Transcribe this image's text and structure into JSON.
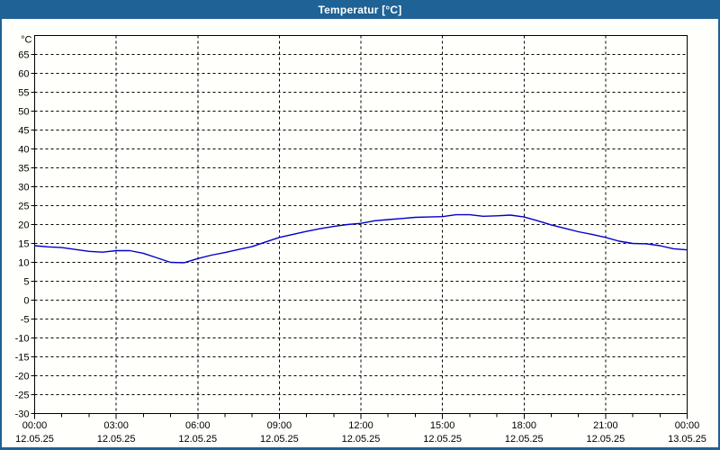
{
  "window": {
    "title": "Temperatur [°C]"
  },
  "colors": {
    "titlebar_bg": "#1e6296",
    "titlebar_text": "#ffffff",
    "frame": "#1e6296",
    "background": "#fffffb",
    "plot_border": "#000000",
    "gridline": "#000000",
    "tick": "#000000",
    "label_text": "#000000",
    "line": "#0000cc"
  },
  "chart_data": {
    "type": "line",
    "title": "Temperatur [°C]",
    "y_unit_label": "°C",
    "ylim": [
      -30,
      70
    ],
    "ytick_step": 5,
    "ytick_labels": [
      "65",
      "60",
      "55",
      "50",
      "45",
      "40",
      "35",
      "30",
      "25",
      "20",
      "15",
      "10",
      "5",
      "0",
      "-5",
      "-10",
      "-15",
      "-20",
      "-25",
      "-30"
    ],
    "xlim_hours": [
      0,
      24
    ],
    "xtick_step_hours": 3,
    "minor_xtick_step_hours": 1,
    "grid": "dashed",
    "legend": "none",
    "xticks": [
      {
        "time": "00:00",
        "date": "12.05.25"
      },
      {
        "time": "03:00",
        "date": "12.05.25"
      },
      {
        "time": "06:00",
        "date": "12.05.25"
      },
      {
        "time": "09:00",
        "date": "12.05.25"
      },
      {
        "time": "12:00",
        "date": "12.05.25"
      },
      {
        "time": "15:00",
        "date": "12.05.25"
      },
      {
        "time": "18:00",
        "date": "12.05.25"
      },
      {
        "time": "21:00",
        "date": "12.05.25"
      },
      {
        "time": "00:00",
        "date": "13.05.25"
      }
    ],
    "series": [
      {
        "name": "Temperatur",
        "color": "#0000cc",
        "x_hours": [
          0,
          0.5,
          1,
          1.5,
          2,
          2.5,
          3,
          3.5,
          4,
          4.5,
          5,
          5.5,
          6,
          6.5,
          7,
          7.5,
          8,
          8.5,
          9,
          9.5,
          10,
          10.5,
          11,
          11.5,
          12,
          12.5,
          13,
          13.5,
          14,
          14.5,
          15,
          15.5,
          16,
          16.5,
          17,
          17.5,
          18,
          18.5,
          19,
          19.5,
          20,
          20.5,
          21,
          21.5,
          22,
          22.5,
          23,
          23.5,
          24
        ],
        "values": [
          14.4,
          14.1,
          13.9,
          13.4,
          12.9,
          12.7,
          13.1,
          13.1,
          12.4,
          11.2,
          10.0,
          9.9,
          11.0,
          11.9,
          12.6,
          13.4,
          14.2,
          15.4,
          16.6,
          17.4,
          18.2,
          18.9,
          19.5,
          20.0,
          20.3,
          21.0,
          21.3,
          21.6,
          21.9,
          22.0,
          22.1,
          22.6,
          22.6,
          22.2,
          22.3,
          22.5,
          22.0,
          21.0,
          19.9,
          19.0,
          18.1,
          17.4,
          16.6,
          15.6,
          15.0,
          14.9,
          14.4,
          13.6,
          13.3
        ]
      }
    ]
  }
}
